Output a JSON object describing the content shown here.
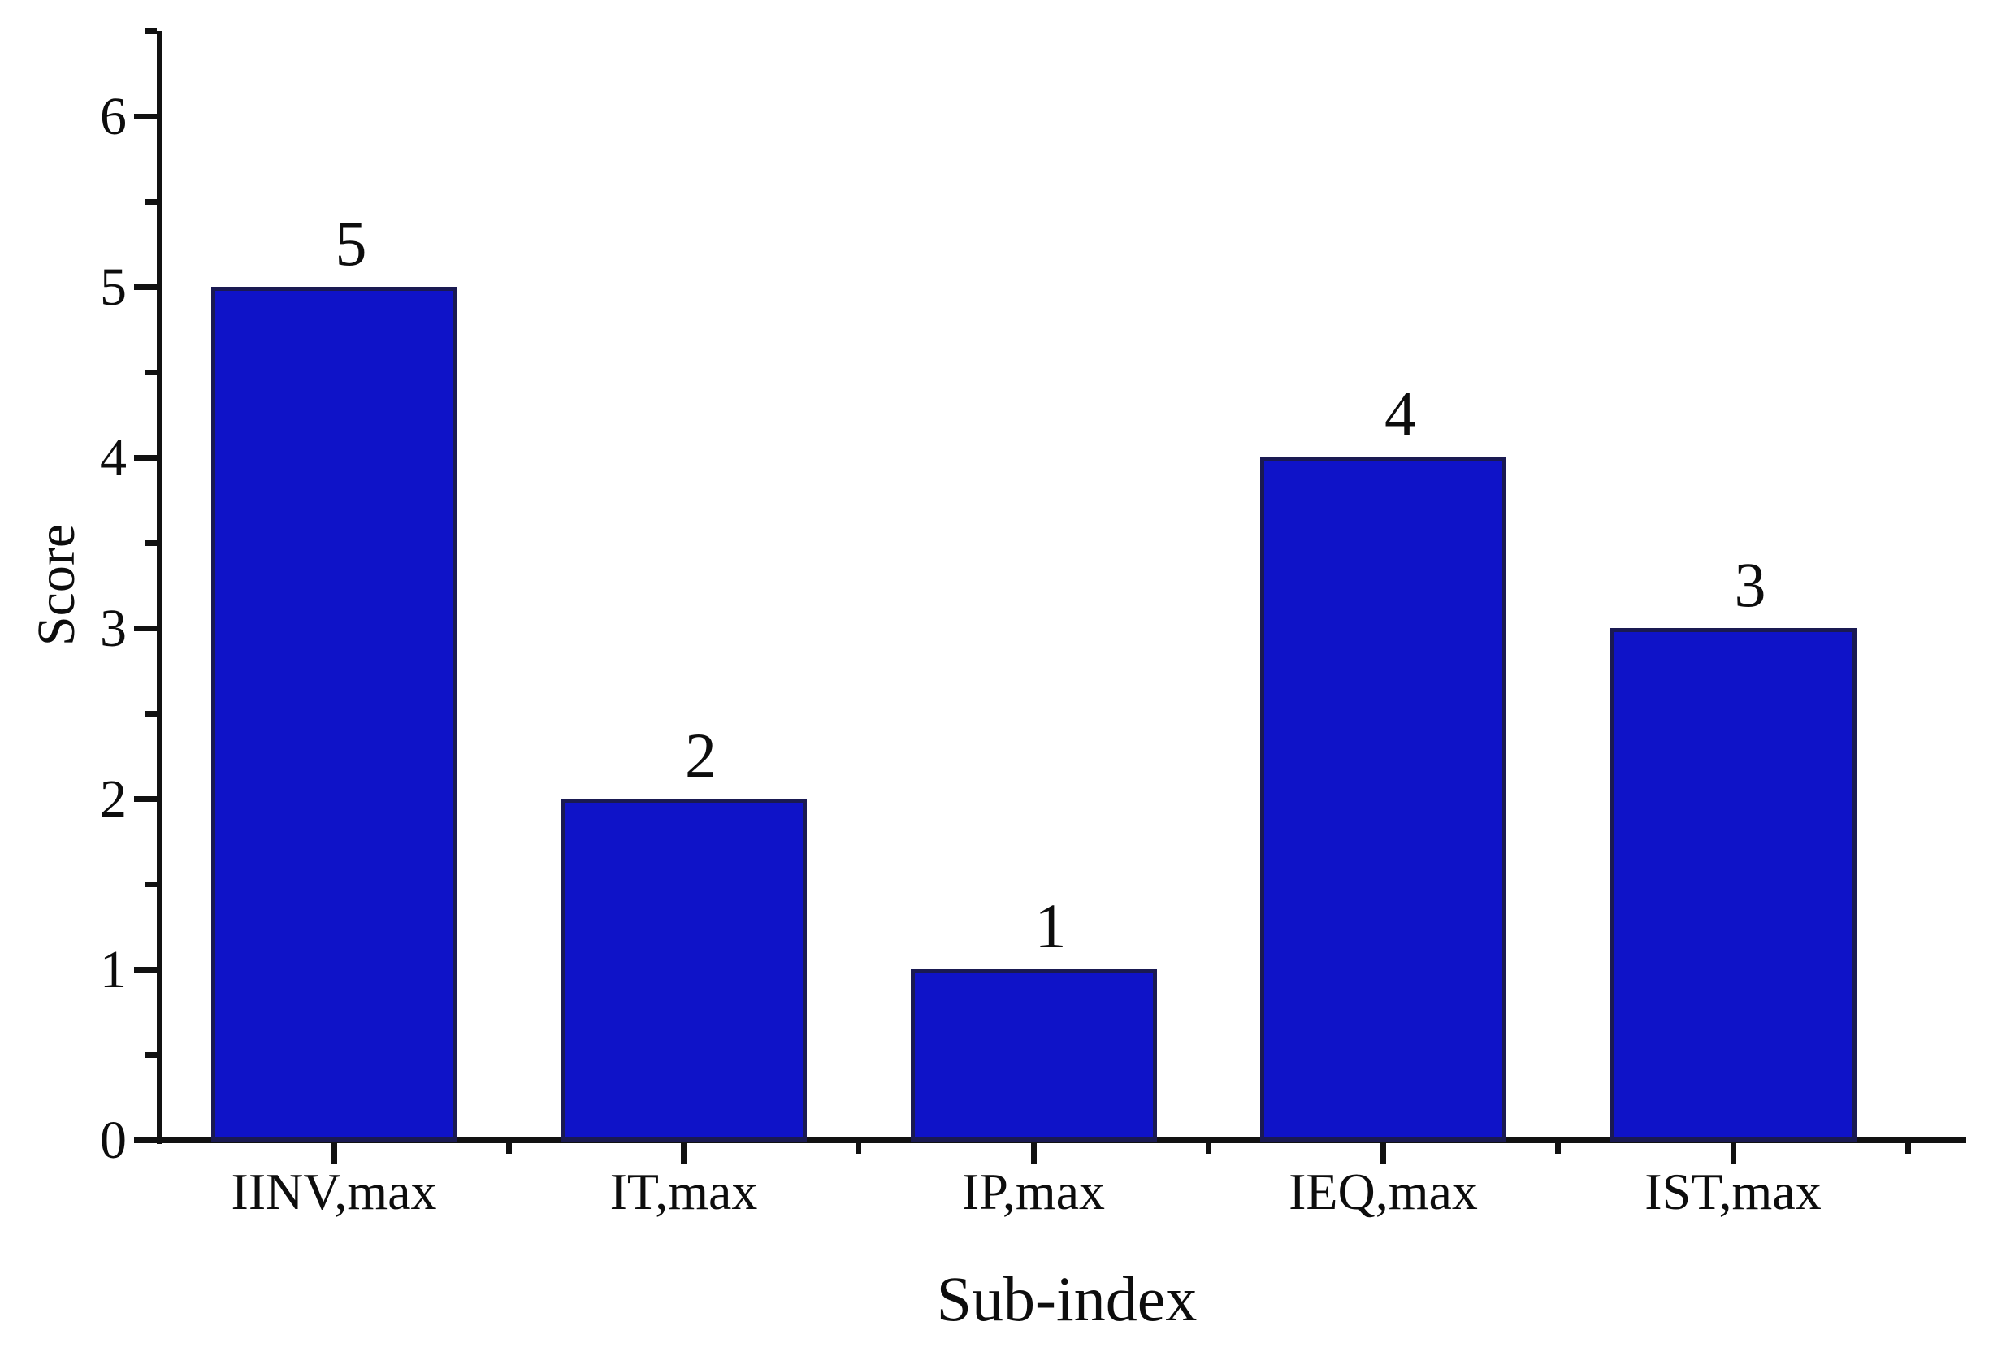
{
  "chart_data": {
    "type": "bar",
    "title": "",
    "xlabel": "Sub-index",
    "ylabel": "Score",
    "categories": [
      "IINV,max",
      "IT,max",
      "IP,max",
      "IEQ,max",
      "IST,max"
    ],
    "values": [
      5,
      2,
      1,
      4,
      3
    ],
    "bar_labels": [
      "5",
      "2",
      "1",
      "4",
      "3"
    ],
    "ylim": [
      0,
      6.5
    ],
    "yticks": [
      0,
      1,
      2,
      3,
      4,
      5,
      6
    ],
    "ytick_labels": [
      "0",
      "1",
      "2",
      "3",
      "4",
      "5",
      "6"
    ],
    "minor_tick_interval": 0.5,
    "grid": false,
    "legend": null,
    "bar_color": "#0f13c8",
    "bar_border_color": "#1a1a52",
    "axis_color": "#111111",
    "text_color": "#0d0d0d"
  }
}
